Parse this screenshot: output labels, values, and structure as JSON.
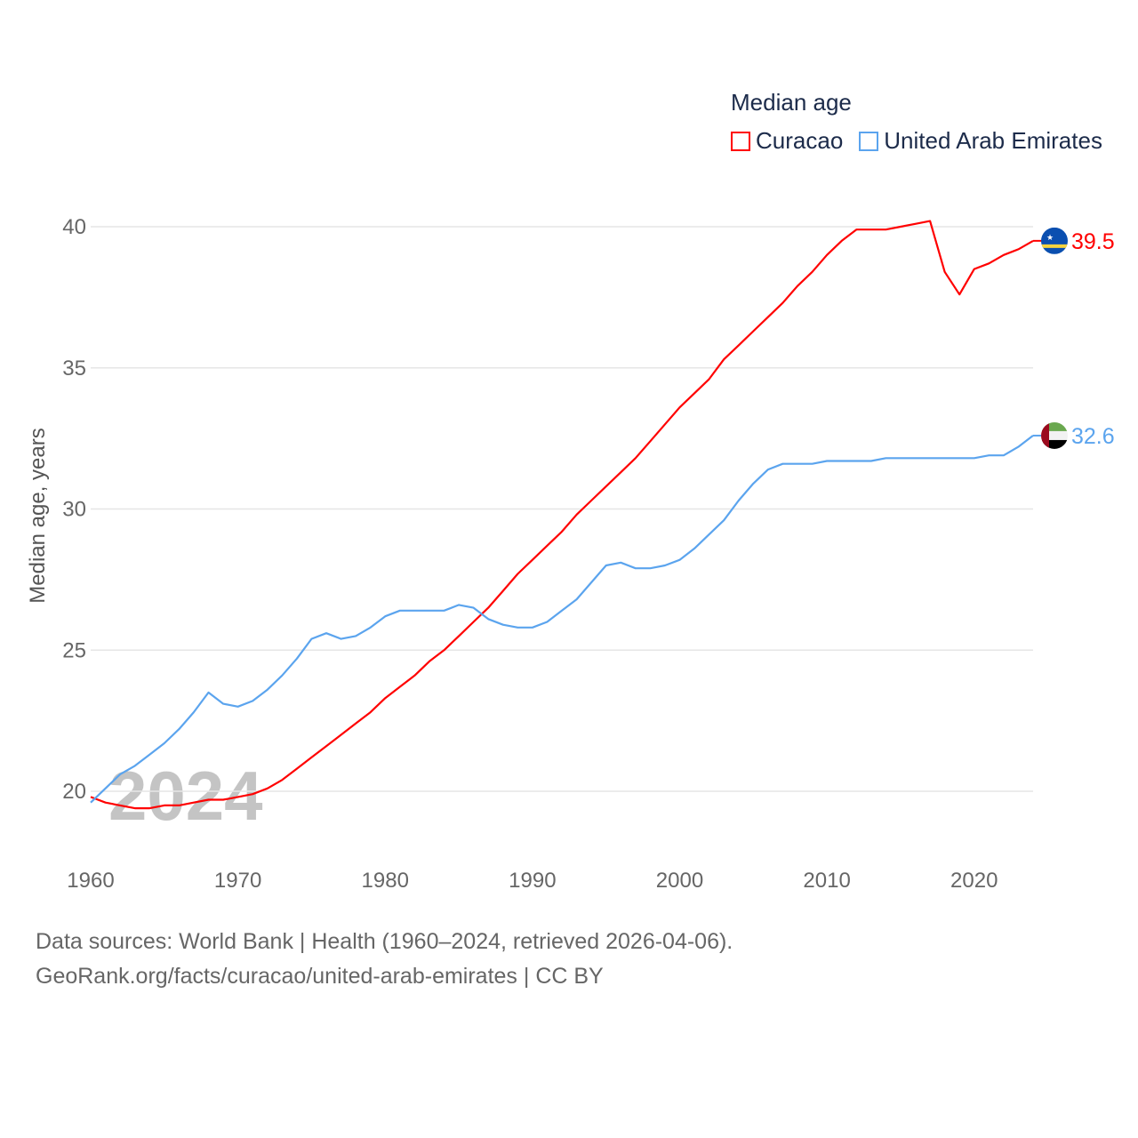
{
  "chart_data": {
    "type": "line",
    "legend_title": "Median age",
    "ylabel": "Median age, years",
    "xlabel": "",
    "year_watermark": "2024",
    "x_ticks": [
      "1960",
      "1970",
      "1980",
      "1990",
      "2000",
      "2010",
      "2020"
    ],
    "y_ticks": [
      "20",
      "25",
      "30",
      "35",
      "40"
    ],
    "xlim": [
      1960,
      2024
    ],
    "ylim": [
      18.6,
      41
    ],
    "grid": true,
    "legend_position": "top-right",
    "x": [
      1960,
      1961,
      1962,
      1963,
      1964,
      1965,
      1966,
      1967,
      1968,
      1969,
      1970,
      1971,
      1972,
      1973,
      1974,
      1975,
      1976,
      1977,
      1978,
      1979,
      1980,
      1981,
      1982,
      1983,
      1984,
      1985,
      1986,
      1987,
      1988,
      1989,
      1990,
      1991,
      1992,
      1993,
      1994,
      1995,
      1996,
      1997,
      1998,
      1999,
      2000,
      2001,
      2002,
      2003,
      2004,
      2005,
      2006,
      2007,
      2008,
      2009,
      2010,
      2011,
      2012,
      2013,
      2014,
      2015,
      2016,
      2017,
      2018,
      2019,
      2020,
      2021,
      2022,
      2023,
      2024
    ],
    "series": [
      {
        "name": "Curacao",
        "color": "#ff0000",
        "end_label": "39.5",
        "flag": "curacao-flag",
        "values": [
          19.8,
          19.6,
          19.5,
          19.4,
          19.4,
          19.5,
          19.5,
          19.6,
          19.7,
          19.7,
          19.8,
          19.9,
          20.1,
          20.4,
          20.8,
          21.2,
          21.6,
          22.0,
          22.4,
          22.8,
          23.3,
          23.7,
          24.1,
          24.6,
          25.0,
          25.5,
          26.0,
          26.5,
          27.1,
          27.7,
          28.2,
          28.7,
          29.2,
          29.8,
          30.3,
          30.8,
          31.3,
          31.8,
          32.4,
          33.0,
          33.6,
          34.1,
          34.6,
          35.3,
          35.8,
          36.3,
          36.8,
          37.3,
          37.9,
          38.4,
          39.0,
          39.5,
          39.9,
          39.9,
          39.9,
          40.0,
          40.1,
          40.2,
          38.4,
          37.6,
          38.5,
          38.7,
          39.0,
          39.2,
          39.5
        ]
      },
      {
        "name": "United Arab Emirates",
        "color": "#5ba4ee",
        "end_label": "32.6",
        "flag": "uae-flag",
        "values": [
          19.6,
          20.1,
          20.6,
          20.9,
          21.3,
          21.7,
          22.2,
          22.8,
          23.5,
          23.1,
          23.0,
          23.2,
          23.6,
          24.1,
          24.7,
          25.4,
          25.6,
          25.4,
          25.5,
          25.8,
          26.2,
          26.4,
          26.4,
          26.4,
          26.4,
          26.6,
          26.5,
          26.1,
          25.9,
          25.8,
          25.8,
          26.0,
          26.4,
          26.8,
          27.4,
          28.0,
          28.1,
          27.9,
          27.9,
          28.0,
          28.2,
          28.6,
          29.1,
          29.6,
          30.3,
          30.9,
          31.4,
          31.6,
          31.6,
          31.6,
          31.7,
          31.7,
          31.7,
          31.7,
          31.8,
          31.8,
          31.8,
          31.8,
          31.8,
          31.8,
          31.8,
          31.9,
          31.9,
          32.2,
          32.6
        ]
      }
    ]
  },
  "footer": {
    "line1": "Data sources: World Bank | Health (1960–2024, retrieved 2026-04-06).",
    "line2": "GeoRank.org/facts/curacao/united-arab-emirates | CC BY"
  }
}
